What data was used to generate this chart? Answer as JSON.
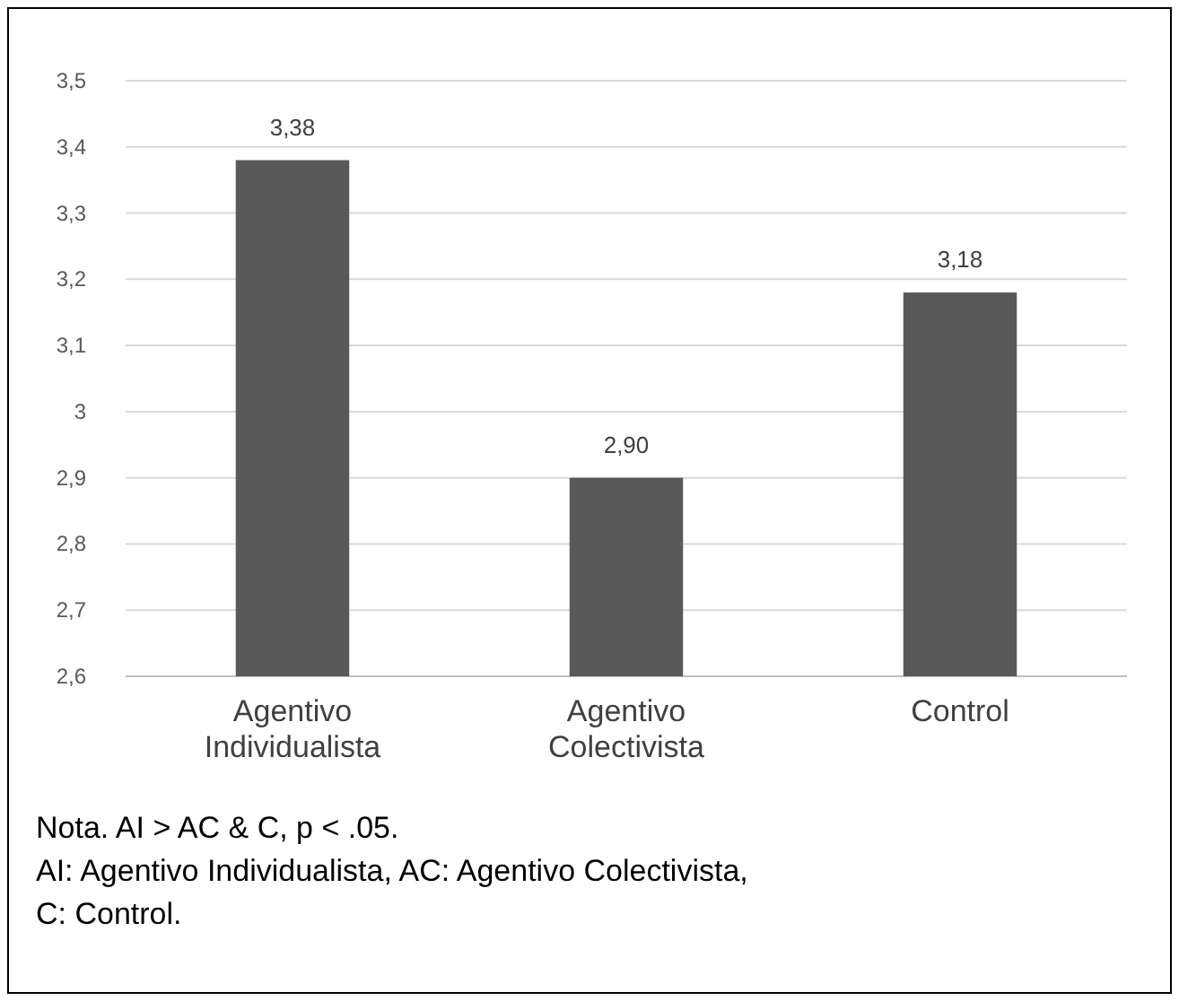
{
  "chart_data": {
    "type": "bar",
    "categories": [
      "Agentivo Individualista",
      "Agentivo Colectivista",
      "Control"
    ],
    "values": [
      3.38,
      2.9,
      3.18
    ],
    "value_labels": [
      "3,38",
      "2,90",
      "3,18"
    ],
    "color": "#595959",
    "ylim": [
      2.6,
      3.5
    ],
    "yticks": [
      {
        "value": 2.6,
        "label": "2,6"
      },
      {
        "value": 2.7,
        "label": "2,7"
      },
      {
        "value": 2.8,
        "label": "2,8"
      },
      {
        "value": 2.9,
        "label": "2,9"
      },
      3,
      {
        "value": 3.1,
        "label": "3,1"
      },
      {
        "value": 3.2,
        "label": "3,2"
      },
      {
        "value": 3.3,
        "label": "3,3"
      },
      {
        "value": 3.4,
        "label": "3,4"
      },
      {
        "value": 3.5,
        "label": "3,5"
      }
    ],
    "grid": true,
    "annotations": [
      "Nota. AI > AC & C, p < .05.",
      "AI: Agentivo Individualista, AC: Agentivo Colectivista,",
      "C: Control."
    ]
  }
}
